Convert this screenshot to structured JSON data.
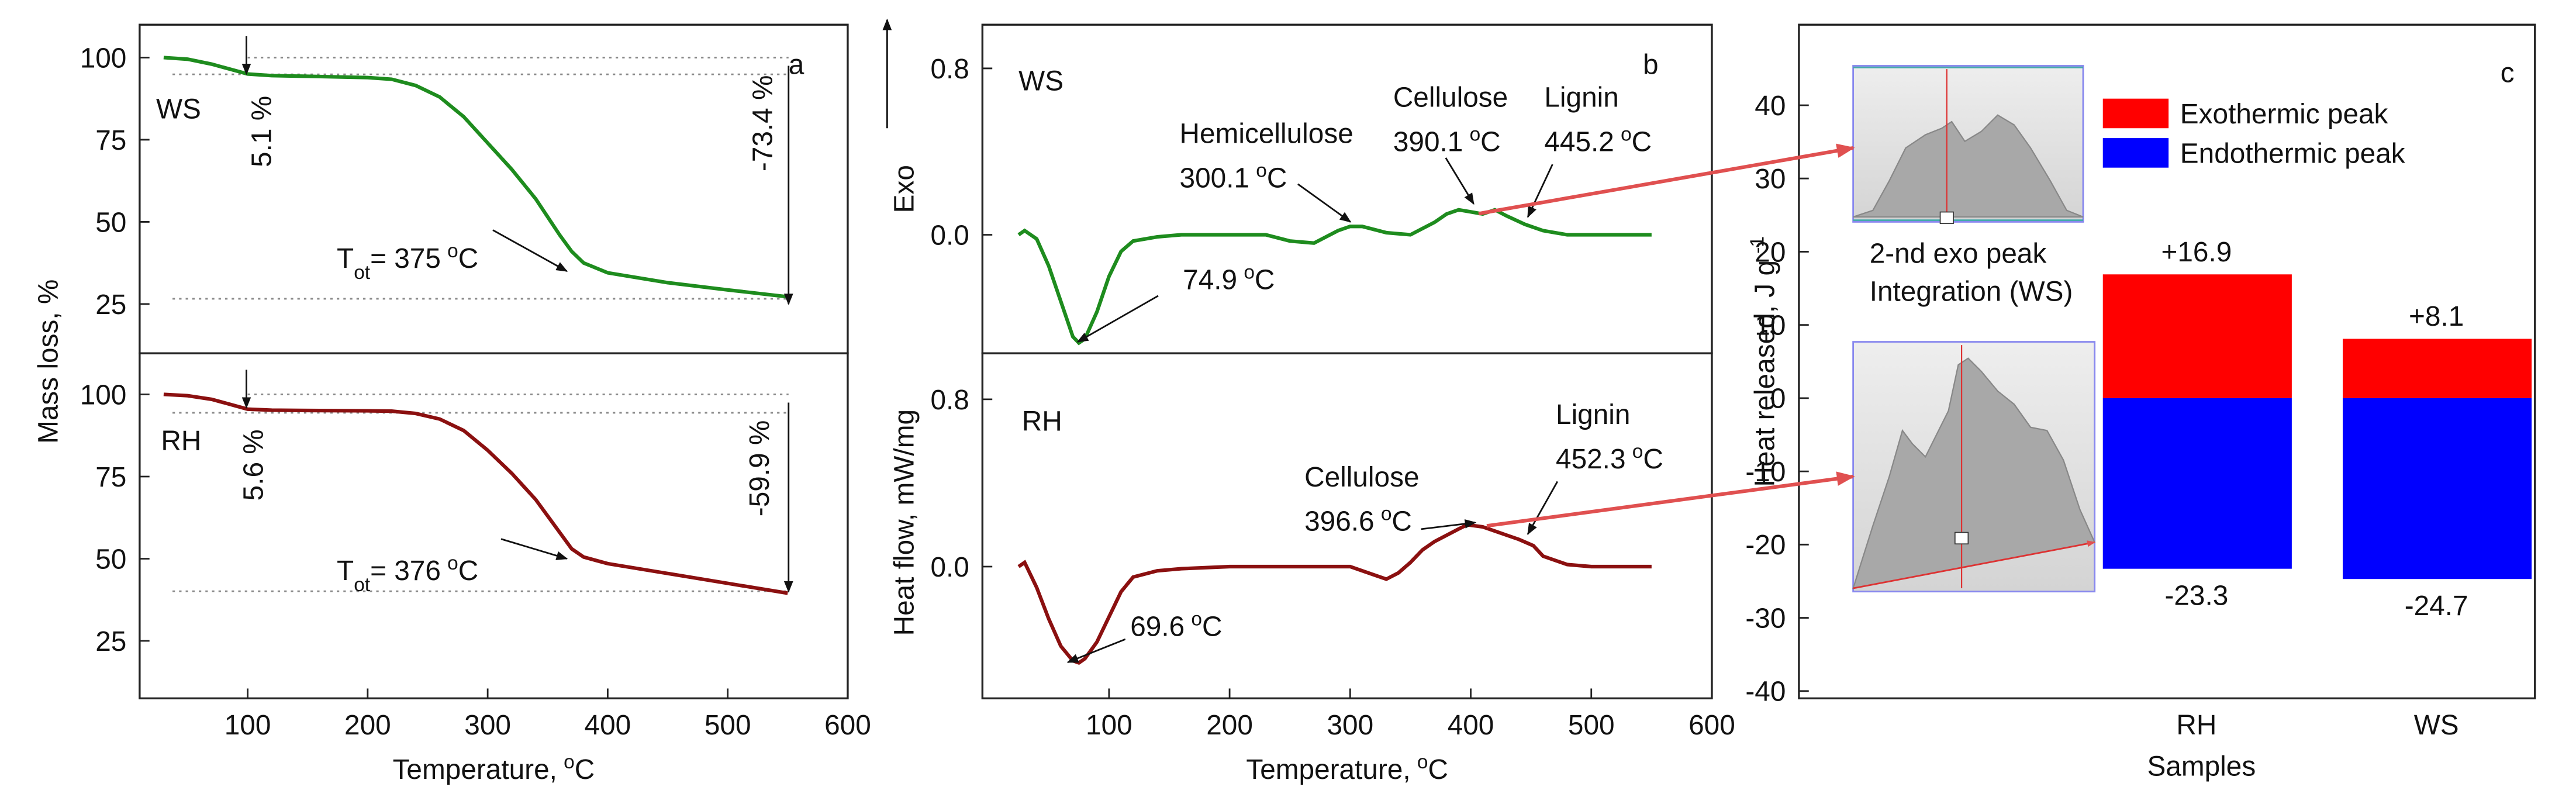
{
  "chart_data": [
    {
      "type": "line",
      "label": "a",
      "ylabel": "Mass loss, %",
      "xlim": [
        10,
        600
      ],
      "ylim": [
        10,
        110
      ],
      "yticks": [
        25,
        50,
        75,
        100
      ],
      "x": [
        30,
        50,
        70,
        90,
        100,
        120,
        150,
        200,
        220,
        240,
        260,
        280,
        300,
        320,
        340,
        360,
        370,
        380,
        400,
        450,
        500,
        550
      ],
      "series": [
        {
          "name": "WS",
          "color": "#1e8c1e",
          "values": [
            100,
            99.5,
            98,
            96,
            95,
            94.5,
            94.3,
            93.9,
            93.4,
            91.5,
            88,
            82,
            74,
            66,
            57,
            46,
            41,
            37.5,
            34.5,
            31.5,
            29.3,
            27.2
          ]
        }
      ],
      "hlines": [
        100,
        94.9,
        26.6
      ],
      "losses": [
        "5.1 %",
        "-73.4 %"
      ],
      "onset": {
        "T": "T",
        "sub": "ot",
        "text": "= 375",
        "sup": "o",
        "unit": "C"
      }
    },
    {
      "type": "line",
      "xlim": [
        10,
        600
      ],
      "ylim": [
        7.5,
        112.5
      ],
      "yticks": [
        25,
        50,
        75,
        100
      ],
      "xticks": [
        100,
        200,
        300,
        400,
        500,
        600
      ],
      "xlabel": {
        "text": "Temperature,",
        "sup": "o",
        "unit": "C"
      },
      "x": [
        30,
        50,
        70,
        90,
        100,
        120,
        150,
        200,
        220,
        240,
        260,
        280,
        300,
        320,
        340,
        360,
        370,
        380,
        400,
        450,
        500,
        550
      ],
      "series": [
        {
          "name": "RH",
          "color": "#8b1010",
          "values": [
            100,
            99.6,
            98.5,
            96.5,
            95.5,
            95.2,
            95.1,
            95,
            94.9,
            94.2,
            92.5,
            89,
            83,
            76,
            68,
            58,
            53,
            50.5,
            48.5,
            45.5,
            42.5,
            39.5
          ]
        }
      ],
      "hlines": [
        100,
        94.4,
        40.1
      ],
      "losses": [
        "5.6 %",
        "-59.9 %"
      ],
      "onset": {
        "T": "T",
        "sub": "ot",
        "text": "= 376",
        "sup": "o",
        "unit": "C"
      }
    },
    {
      "type": "line",
      "label": "b",
      "ylabel": "Heat flow, mW/mg",
      "exo": "Exo",
      "xlim": [
        -5,
        600
      ],
      "ylim": [
        -0.57,
        1.01
      ],
      "yticks": [
        {
          "value": 0,
          "label": "0.0"
        },
        0.8
      ],
      "x": [
        25,
        30,
        40,
        50,
        60,
        70,
        75,
        80,
        90,
        100,
        110,
        120,
        140,
        160,
        200,
        230,
        250,
        270,
        290,
        300,
        310,
        330,
        350,
        370,
        380,
        390,
        400,
        410,
        420,
        430,
        445,
        460,
        480,
        500,
        550
      ],
      "series": [
        {
          "name": "WS",
          "color": "#1e8c1e",
          "values": [
            0,
            0.02,
            -0.02,
            -0.15,
            -0.32,
            -0.49,
            -0.52,
            -0.5,
            -0.37,
            -0.2,
            -0.08,
            -0.03,
            -0.01,
            0,
            0,
            0,
            -0.03,
            -0.04,
            0.02,
            0.04,
            0.04,
            0.01,
            0.0,
            0.06,
            0.1,
            0.12,
            0.11,
            0.1,
            0.12,
            0.09,
            0.05,
            0.02,
            0,
            0,
            0
          ]
        }
      ],
      "peaks": [
        {
          "name": "Hemicellulose",
          "temp": "300.1",
          "sup": "o",
          "unit": "C"
        },
        {
          "name": "Cellulose",
          "temp": "390.1",
          "sup": "o",
          "unit": "C"
        },
        {
          "name": "Lignin",
          "temp": "445.2",
          "sup": "o",
          "unit": "C"
        },
        {
          "temp": "74.9",
          "sup": "o",
          "unit": "C"
        }
      ]
    },
    {
      "type": "line",
      "xlim": [
        -5,
        600
      ],
      "ylim": [
        -0.63,
        1.02
      ],
      "yticks": [
        {
          "value": 0,
          "label": "0.0"
        },
        0.8
      ],
      "xticks": [
        100,
        200,
        300,
        400,
        500,
        600
      ],
      "xlabel": {
        "text": "Temperature,",
        "sup": "o",
        "unit": "C"
      },
      "x": [
        25,
        30,
        40,
        50,
        60,
        70,
        75,
        80,
        90,
        100,
        110,
        120,
        140,
        160,
        200,
        250,
        300,
        320,
        330,
        340,
        350,
        360,
        370,
        380,
        390,
        397,
        410,
        420,
        430,
        440,
        452,
        460,
        480,
        500,
        550
      ],
      "series": [
        {
          "name": "RH",
          "color": "#8b1010",
          "values": [
            0,
            0.02,
            -0.1,
            -0.25,
            -0.38,
            -0.45,
            -0.46,
            -0.44,
            -0.36,
            -0.24,
            -0.12,
            -0.05,
            -0.02,
            -0.01,
            0,
            0,
            0,
            -0.04,
            -0.06,
            -0.03,
            0.02,
            0.08,
            0.12,
            0.15,
            0.18,
            0.2,
            0.19,
            0.17,
            0.15,
            0.13,
            0.1,
            0.05,
            0.01,
            0,
            0
          ]
        }
      ],
      "peaks": [
        {
          "name": "Cellulose",
          "temp": "396.6",
          "sup": "o",
          "unit": "C"
        },
        {
          "name": "Lignin",
          "temp": "452.3",
          "sup": "o",
          "unit": "C"
        },
        {
          "temp": "69.6",
          "sup": "o",
          "unit": "C"
        }
      ]
    },
    {
      "type": "bar",
      "label": "c",
      "ylabel": {
        "text": "Heat released, J g",
        "sup": "-1"
      },
      "xlabel": "Samples",
      "categories": [
        null,
        "RH",
        "WS"
      ],
      "ylim": [
        -41,
        51
      ],
      "yticks": [
        -40,
        -30,
        -20,
        -10,
        0,
        10,
        20,
        30,
        40
      ],
      "series": [
        {
          "name": "Exothermic peak",
          "color": "#ff0000",
          "values": [
            null,
            16.9,
            8.1
          ],
          "value_labels": [
            null,
            "+16.9",
            "+8.1"
          ]
        },
        {
          "name": "Endothermic peak",
          "color": "#0000ff",
          "values": [
            null,
            -23.3,
            -24.7
          ],
          "value_labels": [
            null,
            "-23.3",
            "-24.7"
          ]
        }
      ],
      "inset_text": [
        "2-nd exo peak",
        "Integration (WS)"
      ]
    }
  ]
}
